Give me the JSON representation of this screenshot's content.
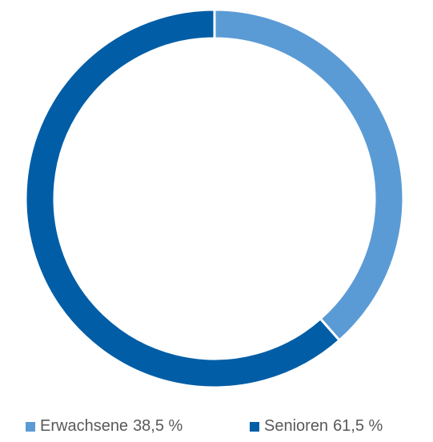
{
  "chart_data": {
    "type": "donut",
    "categories": [
      "Erwachsene",
      "Senioren"
    ],
    "values": [
      38.5,
      61.5
    ],
    "value_labels": [
      "38,5 %",
      "61,5 %"
    ],
    "colors": [
      "#5b9bd5",
      "#005da6"
    ],
    "legend": "bottom"
  }
}
